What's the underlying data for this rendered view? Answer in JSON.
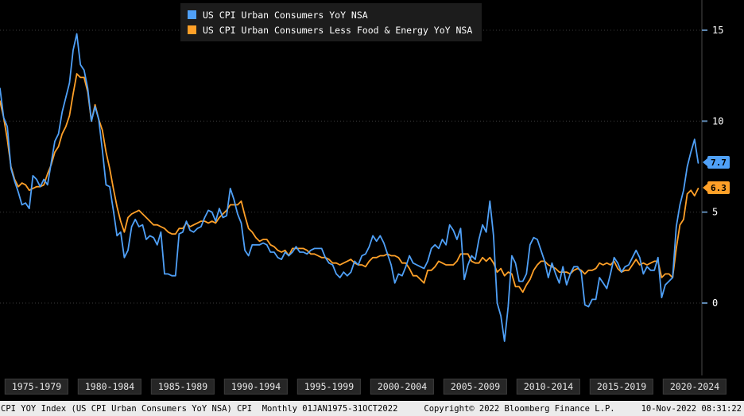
{
  "legend": {
    "items": [
      {
        "label": "US CPI Urban Consumers YoY NSA",
        "color": "#4fa0f7"
      },
      {
        "label": "US CPI Urban Consumers Less Food & Energy YoY NSA",
        "color": "#ffa028"
      }
    ]
  },
  "y_axis": {
    "ticks": [
      "15",
      "10",
      "5",
      "0"
    ],
    "values": [
      15,
      10,
      5,
      0
    ]
  },
  "x_axis": {
    "labels": [
      "1975-1979",
      "1980-1984",
      "1985-1989",
      "1990-1994",
      "1995-1999",
      "2000-2004",
      "2005-2009",
      "2010-2014",
      "2015-2019",
      "2020-2024"
    ]
  },
  "badges": [
    {
      "value": "7.7",
      "color": "#4fa0f7"
    },
    {
      "value": "6.3",
      "color": "#ffa028"
    }
  ],
  "status_bar": {
    "left": "CPI YOY Index (US CPI Urban Consumers YoY NSA) CPI  Monthly 01JAN1975-31OCT2022",
    "center": "Copyright© 2022 Bloomberg Finance L.P.",
    "right": "10-Nov-2022 08:31:22"
  },
  "chart_data": {
    "type": "line",
    "period_label": "01JAN1975-31OCT2022",
    "x_start": 1975.0,
    "x_step": 0.25,
    "x_range": [
      1975,
      2023
    ],
    "ylim": [
      -3.9,
      16.7
    ],
    "y_ticks": [
      0,
      5,
      10,
      15
    ],
    "grid": true,
    "legend_position": "top",
    "background": "#000000",
    "series": [
      {
        "name": "US CPI Urban Consumers YoY NSA",
        "color": "#4fa0f7",
        "last_label": "7.7",
        "values": [
          11.8,
          10.2,
          9.7,
          7.4,
          6.7,
          6.1,
          5.4,
          5.5,
          5.2,
          7.0,
          6.8,
          6.4,
          6.8,
          6.5,
          7.7,
          8.9,
          9.3,
          10.5,
          11.3,
          12.1,
          13.9,
          14.8,
          13.1,
          12.8,
          11.8,
          10.0,
          10.8,
          10.1,
          8.4,
          6.5,
          6.4,
          5.1,
          3.7,
          3.9,
          2.5,
          2.9,
          4.2,
          4.6,
          4.2,
          4.3,
          3.5,
          3.7,
          3.6,
          3.2,
          3.9,
          1.6,
          1.6,
          1.5,
          1.5,
          3.8,
          3.9,
          4.5,
          4.0,
          3.9,
          4.1,
          4.2,
          4.7,
          5.1,
          5.0,
          4.5,
          5.2,
          4.7,
          4.8,
          6.3,
          5.7,
          4.9,
          4.4,
          2.9,
          2.6,
          3.2,
          3.2,
          3.2,
          3.3,
          3.2,
          2.8,
          2.8,
          2.5,
          2.4,
          2.8,
          2.6,
          2.8,
          3.1,
          2.8,
          2.8,
          2.7,
          2.9,
          3.0,
          3.0,
          3.0,
          2.5,
          2.2,
          2.1,
          1.6,
          1.4,
          1.7,
          1.5,
          1.7,
          2.3,
          2.1,
          2.6,
          2.7,
          3.1,
          3.7,
          3.4,
          3.7,
          3.3,
          2.7,
          2.1,
          1.1,
          1.6,
          1.5,
          2.0,
          2.6,
          2.2,
          2.1,
          2.0,
          1.9,
          2.3,
          3.0,
          3.2,
          3.0,
          3.5,
          3.2,
          4.3,
          4.0,
          3.5,
          4.1,
          1.3,
          2.1,
          2.6,
          2.4,
          3.5,
          4.3,
          3.9,
          5.6,
          3.7,
          0.0,
          -0.7,
          -2.1,
          -0.2,
          2.6,
          2.2,
          1.2,
          1.2,
          1.6,
          3.2,
          3.6,
          3.5,
          2.9,
          2.3,
          1.4,
          2.2,
          1.6,
          1.1,
          2.0,
          1.0,
          1.6,
          2.0,
          2.0,
          1.7,
          -0.1,
          -0.2,
          0.2,
          0.2,
          1.4,
          1.1,
          0.8,
          1.6,
          2.5,
          2.2,
          1.7,
          2.0,
          2.1,
          2.5,
          2.9,
          2.5,
          1.6,
          2.0,
          1.8,
          1.8,
          2.5,
          0.3,
          1.0,
          1.2,
          1.4,
          4.2,
          5.4,
          6.2,
          7.5,
          8.3,
          9.0,
          7.7
        ]
      },
      {
        "name": "US CPI Urban Consumers Less Food & Energy YoY NSA",
        "color": "#ffa028",
        "last_label": "6.3",
        "values": [
          11.1,
          10.2,
          9.0,
          7.5,
          6.8,
          6.4,
          6.6,
          6.5,
          6.2,
          6.3,
          6.4,
          6.4,
          6.5,
          7.1,
          7.6,
          8.3,
          8.6,
          9.3,
          9.7,
          10.3,
          11.5,
          12.6,
          12.4,
          12.4,
          11.6,
          10.0,
          10.9,
          10.1,
          9.5,
          8.3,
          7.4,
          6.3,
          5.3,
          4.5,
          3.9,
          4.7,
          4.9,
          5.0,
          5.1,
          4.9,
          4.7,
          4.5,
          4.3,
          4.3,
          4.2,
          4.1,
          3.9,
          3.8,
          3.8,
          4.1,
          4.1,
          4.4,
          4.2,
          4.3,
          4.4,
          4.5,
          4.5,
          4.4,
          4.5,
          4.4,
          4.7,
          4.9,
          5.1,
          5.4,
          5.4,
          5.4,
          5.6,
          4.8,
          4.1,
          3.9,
          3.6,
          3.4,
          3.5,
          3.5,
          3.2,
          3.1,
          2.9,
          2.8,
          2.9,
          2.6,
          3.0,
          3.0,
          3.0,
          3.0,
          2.9,
          2.7,
          2.7,
          2.6,
          2.5,
          2.5,
          2.4,
          2.2,
          2.2,
          2.1,
          2.2,
          2.3,
          2.4,
          2.2,
          2.1,
          2.1,
          2.0,
          2.3,
          2.5,
          2.5,
          2.6,
          2.6,
          2.7,
          2.6,
          2.6,
          2.5,
          2.2,
          2.2,
          1.9,
          1.5,
          1.5,
          1.3,
          1.1,
          1.8,
          1.8,
          2.0,
          2.3,
          2.2,
          2.1,
          2.1,
          2.1,
          2.3,
          2.7,
          2.7,
          2.7,
          2.3,
          2.2,
          2.2,
          2.5,
          2.3,
          2.5,
          2.2,
          1.7,
          1.9,
          1.5,
          1.7,
          1.6,
          0.9,
          0.9,
          0.6,
          1.0,
          1.3,
          1.8,
          2.1,
          2.3,
          2.3,
          2.1,
          2.0,
          1.9,
          1.7,
          1.7,
          1.7,
          1.6,
          1.8,
          1.9,
          1.8,
          1.6,
          1.8,
          1.8,
          1.9,
          2.2,
          2.1,
          2.2,
          2.1,
          2.3,
          1.9,
          1.7,
          1.8,
          1.8,
          2.1,
          2.4,
          2.1,
          2.2,
          2.1,
          2.2,
          2.3,
          2.3,
          1.4,
          1.6,
          1.6,
          1.4,
          3.0,
          4.3,
          4.6,
          6.0,
          6.2,
          5.9,
          6.3
        ]
      }
    ]
  }
}
